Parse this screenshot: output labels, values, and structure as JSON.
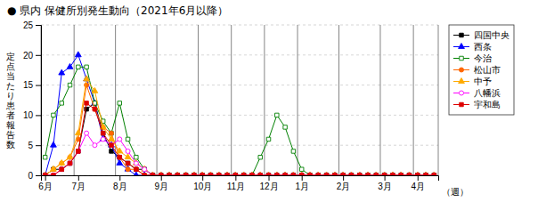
{
  "chart_data": {
    "type": "line",
    "title": "● 県内 保健所別発生動向（2021年6月以降）",
    "x_label": "（週）",
    "y_label": "定点当たり患者報告数",
    "categories": [
      "6月",
      null,
      null,
      null,
      "7月",
      null,
      null,
      null,
      null,
      "8月",
      null,
      null,
      null,
      null,
      "9月",
      null,
      null,
      null,
      null,
      "10月",
      null,
      null,
      null,
      "11月",
      null,
      null,
      null,
      "12月",
      null,
      null,
      null,
      "1月",
      null,
      null,
      null,
      null,
      "2月",
      null,
      null,
      null,
      null,
      "3月",
      null,
      null,
      null,
      "4月",
      null,
      null
    ],
    "ylim": [
      0,
      25
    ],
    "yticks": [
      0,
      5,
      10,
      15,
      20,
      25
    ],
    "grid": true,
    "legend": "right",
    "series": [
      {
        "name": "四国中央",
        "color": "#000000",
        "marker": "square",
        "values": [
          0,
          1,
          1,
          2,
          4,
          11,
          12,
          7,
          4,
          3,
          2,
          1,
          1,
          0,
          0,
          0,
          0,
          0,
          0,
          0,
          0,
          0,
          0,
          0,
          0,
          0,
          0,
          0,
          0,
          0,
          0,
          0,
          0,
          0,
          0,
          0,
          0,
          0,
          0,
          0,
          0,
          0,
          0,
          0,
          0,
          0,
          0,
          0
        ]
      },
      {
        "name": "西条",
        "color": "#0000ff",
        "marker": "triangle",
        "values": [
          0,
          5,
          17,
          18,
          20,
          16,
          12,
          6,
          5,
          2,
          1,
          0,
          0,
          0,
          0,
          0,
          0,
          0,
          0,
          0,
          0,
          0,
          0,
          0,
          0,
          0,
          0,
          0,
          0,
          0,
          0,
          0,
          0,
          0,
          0,
          0,
          0,
          0,
          0,
          0,
          0,
          0,
          0,
          0,
          0,
          0,
          0,
          0
        ]
      },
      {
        "name": "今治",
        "color": "#008000",
        "marker": "square-open",
        "values": [
          3,
          10,
          12,
          15,
          18,
          18,
          12,
          9,
          7,
          12,
          6,
          3,
          1,
          0,
          0,
          0,
          0,
          0,
          0,
          0,
          0,
          0,
          0,
          0,
          0,
          0,
          3,
          6,
          10,
          8,
          4,
          1,
          0,
          0,
          0,
          0,
          0,
          0,
          0,
          0,
          0,
          0,
          0,
          0,
          0,
          0,
          0,
          0
        ]
      },
      {
        "name": "松山市",
        "color": "#ff6600",
        "marker": "circle",
        "values": [
          0,
          1,
          2,
          3,
          6,
          15,
          11,
          8,
          7,
          3,
          1,
          1,
          0,
          0,
          0,
          0,
          0,
          0,
          0,
          0,
          0,
          0,
          0,
          0,
          0,
          0,
          0,
          0,
          0,
          0,
          0,
          0,
          0,
          0,
          0,
          0,
          0,
          0,
          0,
          0,
          0,
          0,
          0,
          0,
          0,
          0,
          0,
          0
        ]
      },
      {
        "name": "中予",
        "color": "#ffaa00",
        "marker": "triangle",
        "values": [
          0,
          1,
          2,
          3,
          7,
          16,
          14,
          8,
          6,
          4,
          3,
          2,
          1,
          0,
          0,
          0,
          0,
          0,
          0,
          0,
          0,
          0,
          0,
          0,
          0,
          0,
          0,
          0,
          0,
          0,
          0,
          0,
          0,
          0,
          0,
          0,
          0,
          0,
          0,
          0,
          0,
          0,
          0,
          0,
          0,
          0,
          0,
          0
        ]
      },
      {
        "name": "八幡浜",
        "color": "#ff00ff",
        "marker": "circle-open",
        "values": [
          0,
          0,
          1,
          2,
          4,
          7,
          5,
          6,
          5,
          6,
          4,
          2,
          1,
          0,
          0,
          0,
          0,
          0,
          0,
          0,
          0,
          0,
          0,
          0,
          0,
          0,
          0,
          0,
          0,
          0,
          0,
          0,
          0,
          0,
          0,
          0,
          0,
          0,
          0,
          0,
          0,
          0,
          0,
          0,
          0,
          0,
          0,
          0
        ]
      },
      {
        "name": "宇和島",
        "color": "#dd0000",
        "marker": "square",
        "values": [
          0,
          0,
          1,
          2,
          4,
          12,
          11,
          7,
          5,
          3,
          2,
          1,
          0,
          0,
          0,
          0,
          0,
          0,
          0,
          0,
          0,
          0,
          0,
          0,
          0,
          0,
          0,
          0,
          0,
          0,
          0,
          0,
          0,
          0,
          0,
          0,
          0,
          0,
          0,
          0,
          0,
          0,
          0,
          0,
          0,
          0,
          0,
          0
        ]
      }
    ]
  }
}
